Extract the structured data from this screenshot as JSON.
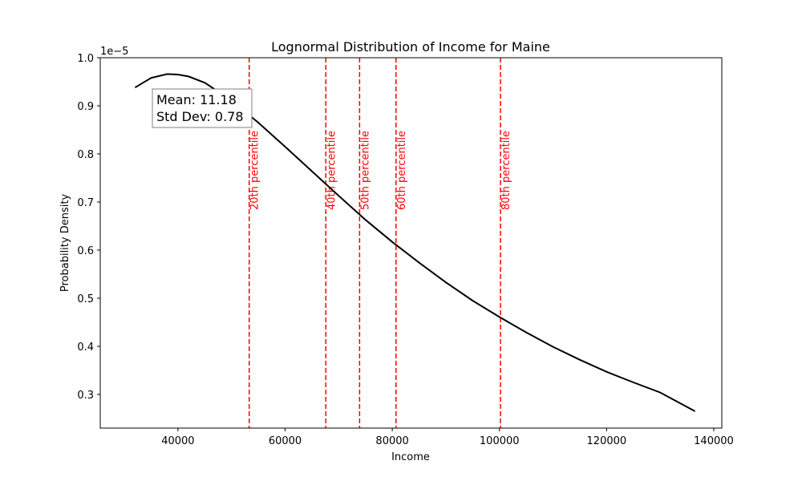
{
  "chart_data": {
    "type": "line",
    "title": "Lognormal Distribution of Income for Maine",
    "xlabel": "Income",
    "ylabel": "Probability Density",
    "y_offset_label": "1e−5",
    "xlim": [
      25500,
      141500
    ],
    "ylim": [
      0.23,
      1.0
    ],
    "x_ticks": [
      40000,
      60000,
      80000,
      100000,
      120000,
      140000
    ],
    "y_ticks": [
      0.3,
      0.4,
      0.5,
      0.6,
      0.7,
      0.8,
      0.9,
      1.0
    ],
    "y_tick_labels": [
      "0.3",
      "0.4",
      "0.5",
      "0.6",
      "0.7",
      "0.8",
      "0.9",
      "1.0"
    ],
    "curve_color": "#000000",
    "percentile_color": "#ff0000",
    "grid": false,
    "series": [
      {
        "x": [
          32000,
          35000,
          38000,
          40000,
          42000,
          45000,
          50000,
          55000,
          60000,
          65000,
          70000,
          75000,
          80000,
          85000,
          90000,
          95000,
          100000,
          105000,
          110000,
          115000,
          120000,
          125000,
          130000,
          136500
        ],
        "y": [
          0.938,
          0.958,
          0.966,
          0.965,
          0.961,
          0.948,
          0.911,
          0.865,
          0.815,
          0.764,
          0.713,
          0.663,
          0.617,
          0.574,
          0.533,
          0.495,
          0.461,
          0.429,
          0.399,
          0.372,
          0.347,
          0.325,
          0.304,
          0.265
        ]
      }
    ],
    "percentiles": [
      {
        "label": "20th percentile",
        "x": 53300
      },
      {
        "label": "40th percentile",
        "x": 67600
      },
      {
        "label": "50th percentile",
        "x": 73900
      },
      {
        "label": "60th percentile",
        "x": 80700
      },
      {
        "label": "80th percentile",
        "x": 100200
      }
    ],
    "stats_box": {
      "mean": "Mean: 11.18",
      "std": "Std Dev: 0.78"
    }
  }
}
